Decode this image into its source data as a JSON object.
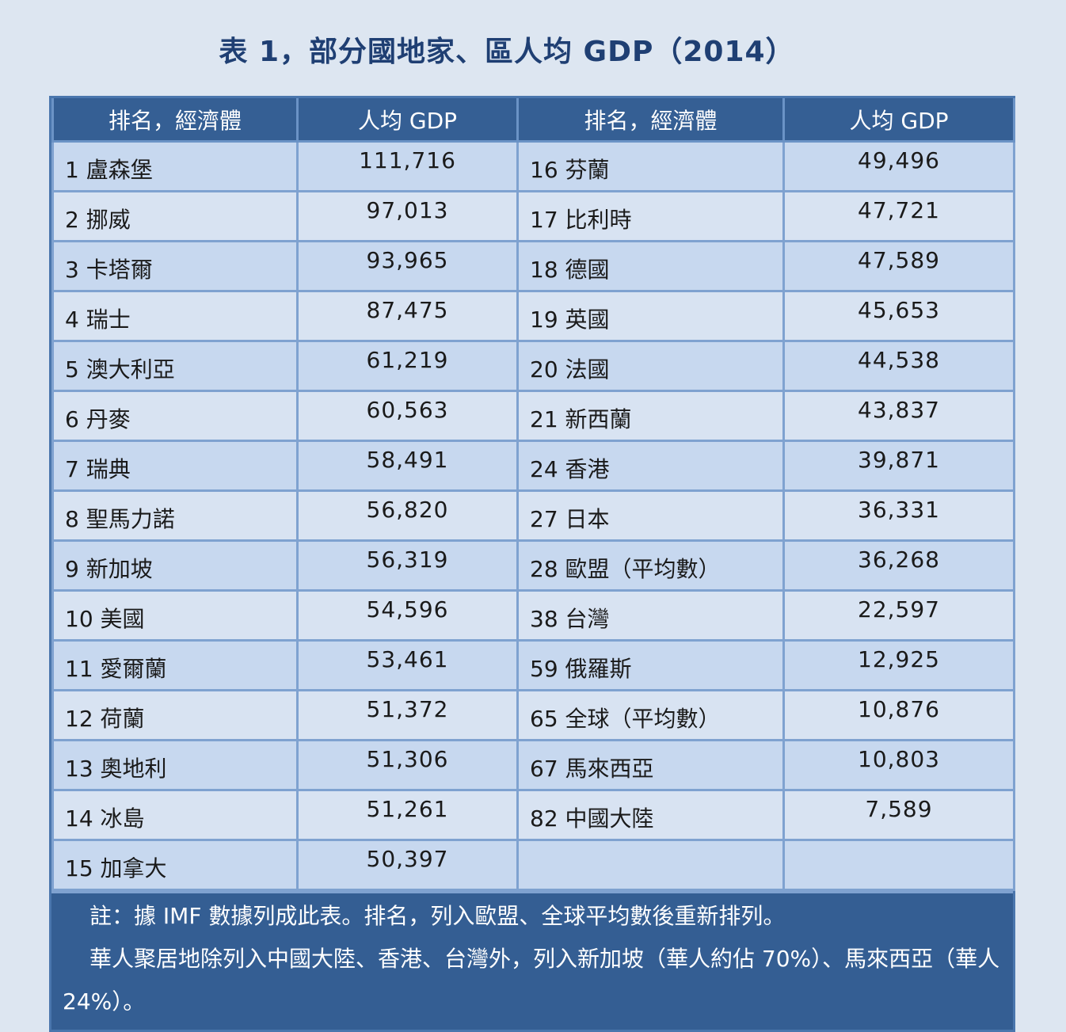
{
  "title": "表 1，部分國地家、區人均 GDP（2014）",
  "headers": [
    "排名，經濟體",
    "人均 GDP",
    "排名，經濟體",
    "人均 GDP"
  ],
  "rows": [
    {
      "left_name": "1 盧森堡",
      "left_value": "111,716",
      "right_name": "16 芬蘭",
      "right_value": "49,496"
    },
    {
      "left_name": "2 挪威",
      "left_value": "97,013",
      "right_name": "17 比利時",
      "right_value": "47,721"
    },
    {
      "left_name": "3 卡塔爾",
      "left_value": "93,965",
      "right_name": "18 德國",
      "right_value": "47,589"
    },
    {
      "left_name": "4 瑞士",
      "left_value": "87,475",
      "right_name": "19 英國",
      "right_value": "45,653"
    },
    {
      "left_name": "5 澳大利亞",
      "left_value": "61,219",
      "right_name": "20 法國",
      "right_value": "44,538"
    },
    {
      "left_name": "6 丹麥",
      "left_value": "60,563",
      "right_name": "21 新西蘭",
      "right_value": "43,837"
    },
    {
      "left_name": "7 瑞典",
      "left_value": "58,491",
      "right_name": "24 香港",
      "right_value": "39,871"
    },
    {
      "left_name": "8 聖馬力諾",
      "left_value": "56,820",
      "right_name": "27 日本",
      "right_value": "36,331"
    },
    {
      "left_name": "9 新加坡",
      "left_value": "56,319",
      "right_name": "28 歐盟（平均數）",
      "right_value": "36,268"
    },
    {
      "left_name": "10 美國",
      "left_value": "54,596",
      "right_name": "38 台灣",
      "right_value": "22,597"
    },
    {
      "left_name": "11 愛爾蘭",
      "left_value": "53,461",
      "right_name": "59 俄羅斯",
      "right_value": "12,925"
    },
    {
      "left_name": "12 荷蘭",
      "left_value": "51,372",
      "right_name": "65 全球（平均數）",
      "right_value": "10,876"
    },
    {
      "left_name": "13 奧地利",
      "left_value": "51,306",
      "right_name": "67 馬來西亞",
      "right_value": "10,803"
    },
    {
      "left_name": "14 冰島",
      "left_value": "51,261",
      "right_name": "82 中國大陸",
      "right_value": "7,589"
    },
    {
      "left_name": "15 加拿大",
      "left_value": "50,397",
      "right_name": "",
      "right_value": ""
    }
  ],
  "notes": [
    "註：據 IMF 數據列成此表。排名，列入歐盟、全球平均數後重新排列。",
    "華人聚居地除列入中國大陸、香港、台灣外，列入新加坡（華人約佔 70%）、馬來西亞（華人 24%）。"
  ]
}
